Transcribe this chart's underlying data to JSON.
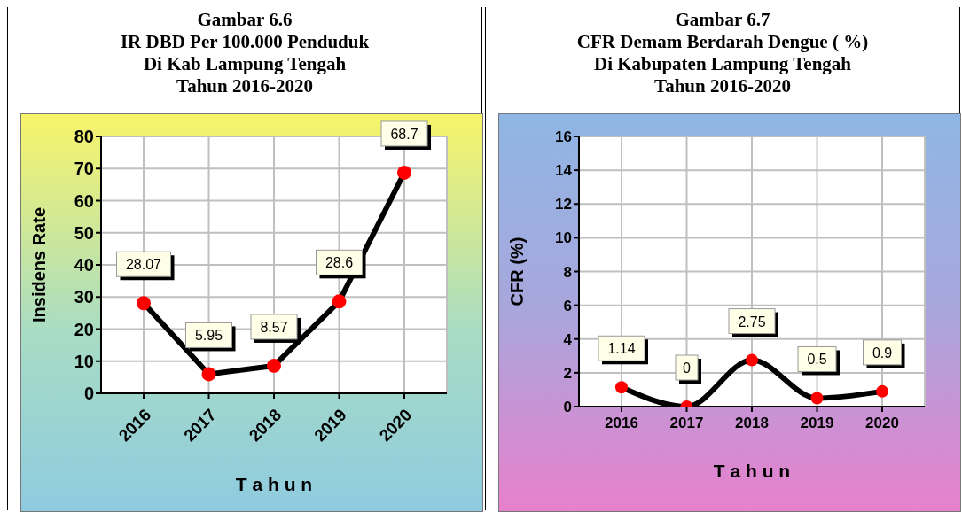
{
  "chart_data": [
    {
      "type": "line",
      "title": "Gambar 6.6\nIR  DBD Per 100.000 Penduduk\nDi Kab Lampung Tengah\nTahun 2016-2020",
      "xlabel": "T a h u n",
      "ylabel": "Insidens Rate",
      "categories": [
        "2016",
        "2017",
        "2018",
        "2019",
        "2020"
      ],
      "series": [
        {
          "color": "#000000",
          "colors": [
            "#ff0000",
            "#ff0000",
            "#ff0000",
            "#ff0000",
            "#ff0000"
          ],
          "values": [
            28.07,
            5.95,
            8.57,
            28.6,
            68.7
          ]
        }
      ],
      "ylim": [
        0,
        80
      ],
      "yticks": [
        0,
        10,
        20,
        30,
        40,
        50,
        60,
        70,
        80
      ],
      "grid": true,
      "marker": "circle",
      "line_style": "solid",
      "data_labels": true
    },
    {
      "type": "line",
      "title": "Gambar 6.7\nCFR Demam Berdarah Dengue ( %)\nDi Kabupaten Lampung Tengah\nTahun 2016-2020",
      "xlabel": "T a h u n",
      "ylabel": "CFR (%)",
      "categories": [
        "2016",
        "2017",
        "2018",
        "2019",
        "2020"
      ],
      "series": [
        {
          "color": "#000000",
          "colors": [
            "#ff0000",
            "#ff0000",
            "#ff0000",
            "#ff0000",
            "#ff0000"
          ],
          "values": [
            1.14,
            0,
            2.75,
            0.5,
            0.9
          ]
        }
      ],
      "ylim": [
        0,
        16
      ],
      "yticks": [
        0,
        2,
        4,
        6,
        8,
        10,
        12,
        14,
        16
      ],
      "grid": true,
      "marker": "circle",
      "line_style": "solid",
      "data_labels": true
    }
  ]
}
